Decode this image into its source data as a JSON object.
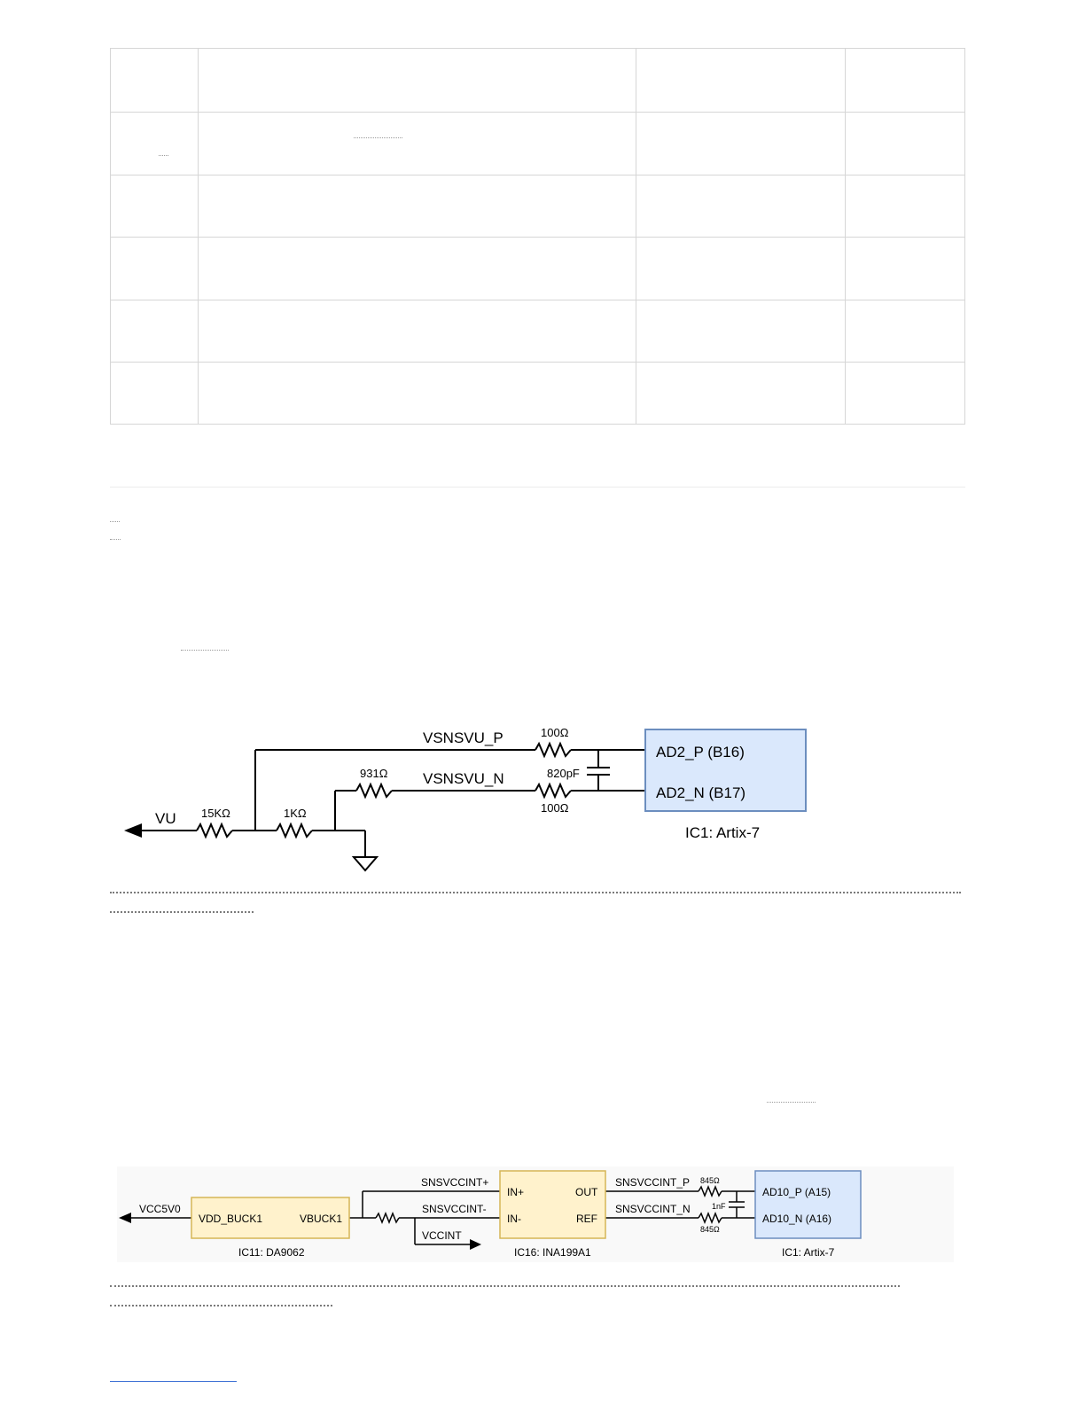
{
  "diagram1": {
    "net_p": "VSNSVU_P",
    "net_n": "VSNSVU_N",
    "source": "VU",
    "r1": "15KΩ",
    "r2": "1KΩ",
    "r3": "931Ω",
    "r_p": "100Ω",
    "r_n": "100Ω",
    "cap": "820pF",
    "pin_p": "AD2_P (B16)",
    "pin_n": "AD2_N (B17)",
    "ic_label": "IC1: Artix-7",
    "ic_fill": "#dae8fc",
    "ic_stroke": "#6c8ebf"
  },
  "diagram2": {
    "source": "VCC5V0",
    "pmic_pin_in": "VDD_BUCK1",
    "pmic_pin_out": "VBUCK1",
    "pmic_label": "IC11: DA9062",
    "net_plus": "SNSVCCINT+",
    "net_minus": "SNSVCCINT-",
    "load": "VCCINT",
    "amp_in_p": "IN+",
    "amp_in_n": "IN-",
    "amp_out": "OUT",
    "amp_ref": "REF",
    "amp_label": "IC16: INA199A1",
    "net_p": "SNSVCCINT_P",
    "net_n": "SNSVCCINT_N",
    "r_p": "845Ω",
    "r_n": "845Ω",
    "cap": "1nF",
    "pin_p": "AD10_P (A15)",
    "pin_n": "AD10_N (A16)",
    "ic_label": "IC1: Artix-7",
    "chip_fill": "#fff2cc",
    "chip_stroke": "#d6b656",
    "ic_fill": "#dae8fc",
    "ic_stroke": "#6c8ebf"
  }
}
